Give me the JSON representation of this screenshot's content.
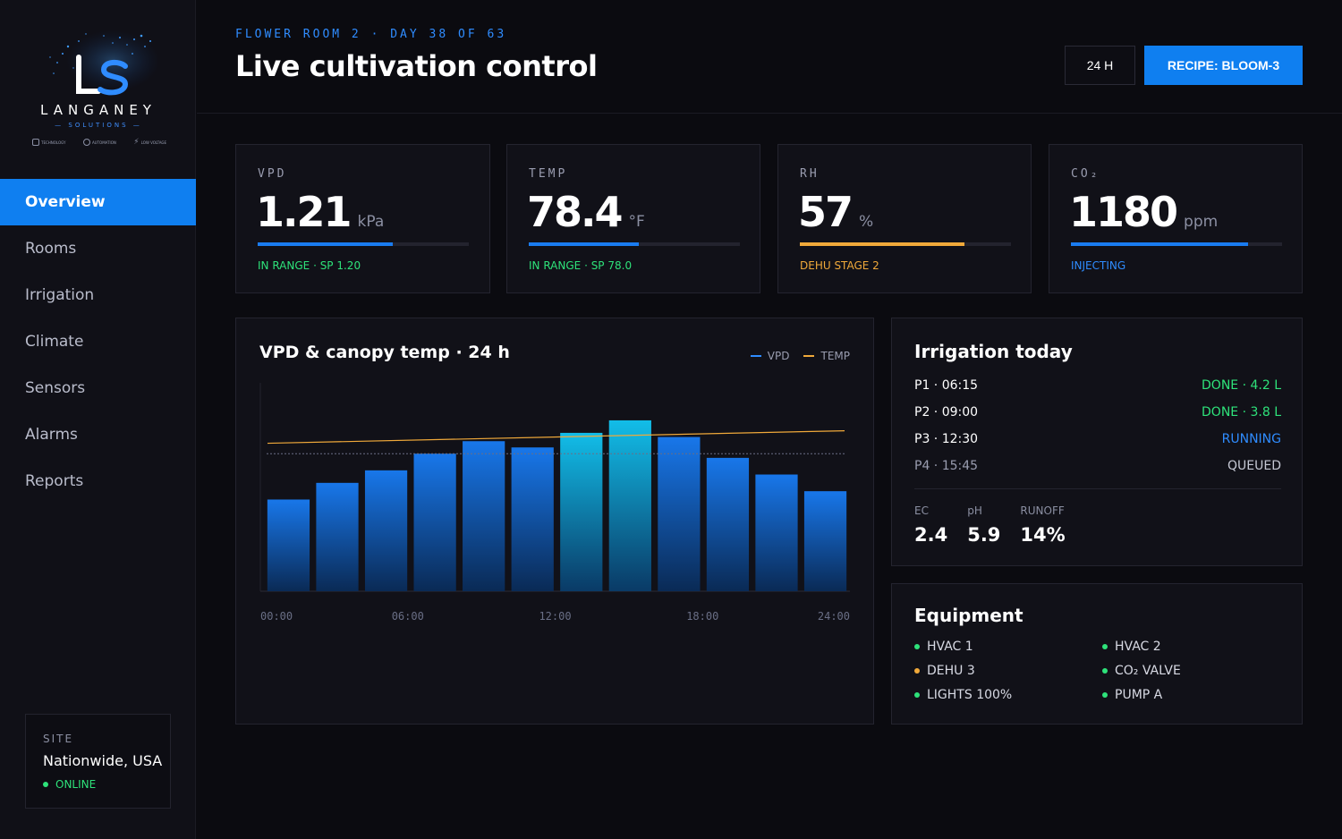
{
  "brand": {
    "name": "LANGANEY",
    "tagline": "SOLUTIONS",
    "tags": [
      "TECHNOLOGY",
      "AUTOMATION",
      "LOW VOLTAGE"
    ]
  },
  "sidebar": {
    "items": [
      {
        "label": "Overview",
        "active": true
      },
      {
        "label": "Rooms"
      },
      {
        "label": "Irrigation"
      },
      {
        "label": "Climate"
      },
      {
        "label": "Sensors"
      },
      {
        "label": "Alarms"
      },
      {
        "label": "Reports"
      }
    ],
    "site": {
      "label": "SITE",
      "name": "Nationwide, USA",
      "status": "ONLINE"
    }
  },
  "header": {
    "subtitle": "FLOWER ROOM 2 · DAY 38 OF 63",
    "title": "Live cultivation control",
    "range_label": "24 H",
    "recipe_label": "RECIPE: BLOOM-3"
  },
  "metrics": [
    {
      "label": "VPD",
      "value": "1.21",
      "unit": "kPa",
      "status": "IN RANGE · SP 1.20",
      "fill": 0.64,
      "bar_color": "#1a7cf0",
      "status_color": "#2ee27a"
    },
    {
      "label": "TEMP",
      "value": "78.4",
      "unit": "°F",
      "status": "IN RANGE · SP 78.0",
      "fill": 0.52,
      "bar_color": "#1a7cf0",
      "status_color": "#2ee27a"
    },
    {
      "label": "RH",
      "value": "57",
      "unit": "%",
      "status": "DEHU STAGE 2",
      "fill": 0.78,
      "bar_color": "#f0a93a",
      "status_color": "#f0a93a"
    },
    {
      "label": "CO₂",
      "value": "1180",
      "unit": "ppm",
      "status": "INJECTING",
      "fill": 0.84,
      "bar_color": "#1a7cf0",
      "status_color": "#2f8cff"
    }
  ],
  "chart_panel": {
    "title": "VPD & canopy temp · 24 h",
    "legend": [
      {
        "name": "VPD",
        "color": "#2f8cff"
      },
      {
        "name": "TEMP",
        "color": "#f0a93a"
      }
    ]
  },
  "chart_data": {
    "type": "bar",
    "x_tick_labels": [
      "00:00",
      "06:00",
      "12:00",
      "18:00",
      "24:00"
    ],
    "series": [
      {
        "name": "VPD",
        "type": "bar",
        "values": [
          0.44,
          0.52,
          0.58,
          0.66,
          0.72,
          0.69,
          0.76,
          0.82,
          0.74,
          0.64,
          0.56,
          0.48
        ]
      },
      {
        "name": "TEMP",
        "type": "line",
        "start": 0.71,
        "end": 0.77
      }
    ],
    "reference_line": 0.66,
    "ylim": [
      0,
      1
    ],
    "highlighted_bars": [
      6,
      7
    ],
    "grid": false
  },
  "irrigation": {
    "title": "Irrigation today",
    "events": [
      {
        "name": "P1 · 06:15",
        "status": "DONE · 4.2 L",
        "color": "#2ee27a",
        "name_color": "#ffffff"
      },
      {
        "name": "P2 · 09:00",
        "status": "DONE · 3.8 L",
        "color": "#2ee27a",
        "name_color": "#ffffff"
      },
      {
        "name": "P3 · 12:30",
        "status": "RUNNING",
        "color": "#2f8cff",
        "name_color": "#ffffff"
      },
      {
        "name": "P4 · 15:45",
        "status": "QUEUED",
        "color": "#c5c8d4",
        "name_color": "#9a9db0"
      }
    ],
    "readings": [
      {
        "label": "EC",
        "value": "2.4"
      },
      {
        "label": "pH",
        "value": "5.9"
      },
      {
        "label": "RUNOFF",
        "value": "14%"
      }
    ]
  },
  "equipment": {
    "title": "Equipment",
    "items": [
      {
        "name": "HVAC 1",
        "color": "#2ee27a"
      },
      {
        "name": "HVAC 2",
        "color": "#2ee27a"
      },
      {
        "name": "DEHU 3",
        "color": "#f0a93a"
      },
      {
        "name": "CO₂ VALVE",
        "color": "#2ee27a"
      },
      {
        "name": "LIGHTS 100%",
        "color": "#2ee27a"
      },
      {
        "name": "PUMP A",
        "color": "#2ee27a"
      }
    ]
  }
}
